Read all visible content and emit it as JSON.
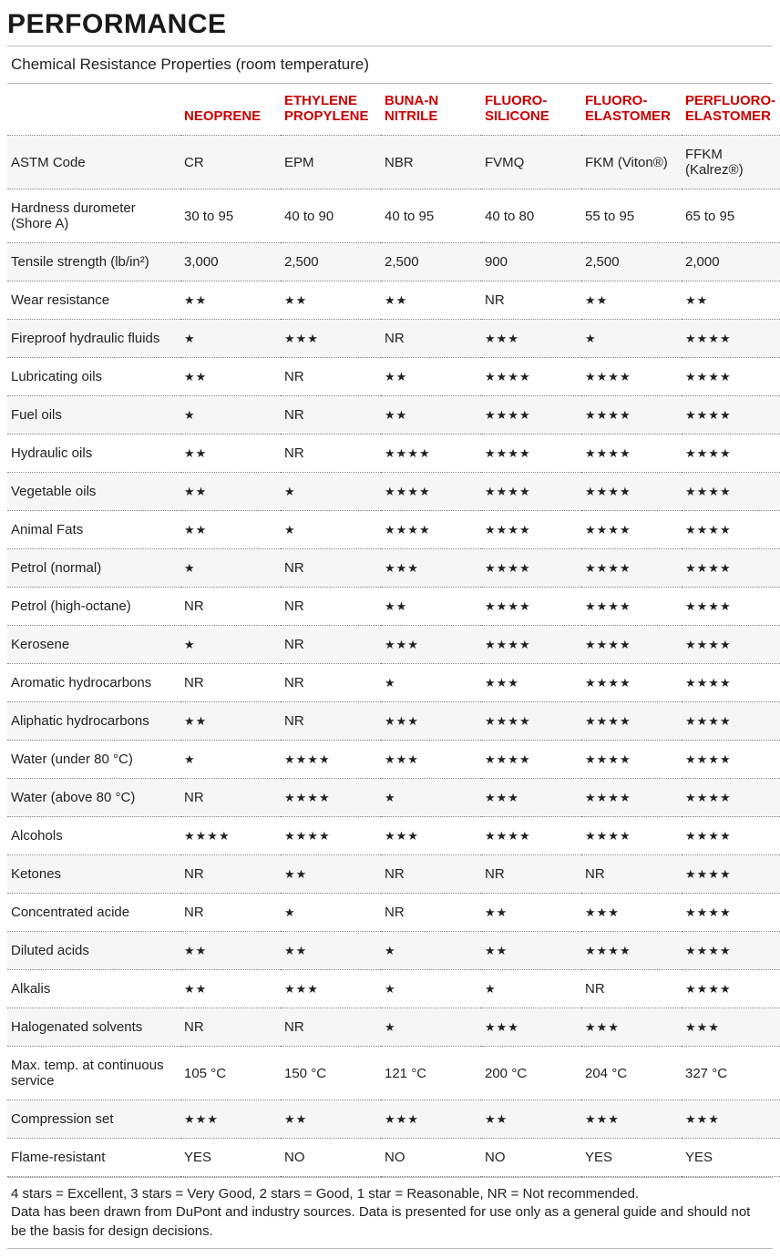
{
  "header": {
    "title": "PERFORMANCE",
    "subtitle": "Chemical Resistance Properties (room temperature)"
  },
  "table": {
    "columns": [
      "NEOPRENE",
      "ETHYLENE PROPYLENE",
      "BUNA-N NITRILE",
      "FLUORO-SILICONE",
      "FLUORO-ELASTOMER",
      "PERFLUORO-ELASTOMER"
    ],
    "rows": [
      {
        "label": "ASTM Code",
        "type": "text",
        "values": [
          "CR",
          "EPM",
          "NBR",
          "FVMQ",
          "FKM (Viton®)",
          "FFKM (Kalrez®)"
        ]
      },
      {
        "label": "Hardness durometer (Shore A)",
        "type": "text",
        "values": [
          "30 to 95",
          "40 to 90",
          "40 to 95",
          "40 to 80",
          "55 to 95",
          "65 to 95"
        ]
      },
      {
        "label": "Tensile strength (lb/in²)",
        "type": "text",
        "values": [
          "3,000",
          "2,500",
          "2,500",
          "900",
          "2,500",
          "2,000"
        ]
      },
      {
        "label": "Wear resistance",
        "type": "rating",
        "values": [
          2,
          2,
          2,
          "NR",
          2,
          2
        ]
      },
      {
        "label": "Fireproof hydraulic fluids",
        "type": "rating",
        "values": [
          1,
          3,
          "NR",
          3,
          1,
          4
        ]
      },
      {
        "label": "Lubricating oils",
        "type": "rating",
        "values": [
          2,
          "NR",
          2,
          4,
          4,
          4
        ]
      },
      {
        "label": "Fuel oils",
        "type": "rating",
        "values": [
          1,
          "NR",
          2,
          4,
          4,
          4
        ]
      },
      {
        "label": "Hydraulic oils",
        "type": "rating",
        "values": [
          2,
          "NR",
          4,
          4,
          4,
          4
        ]
      },
      {
        "label": "Vegetable oils",
        "type": "rating",
        "values": [
          2,
          1,
          4,
          4,
          4,
          4
        ]
      },
      {
        "label": "Animal Fats",
        "type": "rating",
        "values": [
          2,
          1,
          4,
          4,
          4,
          4
        ]
      },
      {
        "label": "Petrol (normal)",
        "type": "rating",
        "values": [
          1,
          "NR",
          3,
          4,
          4,
          4
        ]
      },
      {
        "label": "Petrol (high-octane)",
        "type": "rating",
        "values": [
          "NR",
          "NR",
          2,
          4,
          4,
          4
        ]
      },
      {
        "label": "Kerosene",
        "type": "rating",
        "values": [
          1,
          "NR",
          3,
          4,
          4,
          4
        ]
      },
      {
        "label": "Aromatic hydrocarbons",
        "type": "rating",
        "values": [
          "NR",
          "NR",
          1,
          3,
          4,
          4
        ]
      },
      {
        "label": "Aliphatic hydrocarbons",
        "type": "rating",
        "values": [
          2,
          "NR",
          3,
          4,
          4,
          4
        ]
      },
      {
        "label": "Water (under 80 °C)",
        "type": "rating",
        "values": [
          1,
          4,
          3,
          4,
          4,
          4
        ]
      },
      {
        "label": "Water (above 80 °C)",
        "type": "rating",
        "values": [
          "NR",
          4,
          1,
          3,
          4,
          4
        ]
      },
      {
        "label": "Alcohols",
        "type": "rating",
        "values": [
          4,
          4,
          3,
          4,
          4,
          4
        ]
      },
      {
        "label": "Ketones",
        "type": "rating",
        "values": [
          "NR",
          2,
          "NR",
          "NR",
          "NR",
          4
        ]
      },
      {
        "label": "Concentrated acide",
        "type": "rating",
        "values": [
          "NR",
          1,
          "NR",
          2,
          3,
          4
        ]
      },
      {
        "label": "Diluted acids",
        "type": "rating",
        "values": [
          2,
          2,
          1,
          2,
          4,
          4
        ]
      },
      {
        "label": "Alkalis",
        "type": "rating",
        "values": [
          2,
          3,
          1,
          1,
          "NR",
          4
        ]
      },
      {
        "label": "Halogenated solvents",
        "type": "rating",
        "values": [
          "NR",
          "NR",
          1,
          3,
          3,
          3
        ]
      },
      {
        "label": "Max. temp. at continuous service",
        "type": "text",
        "values": [
          "105 °C",
          "150 °C",
          "121 °C",
          "200 °C",
          "204 °C",
          "327 °C"
        ]
      },
      {
        "label": "Compression set",
        "type": "rating",
        "values": [
          3,
          2,
          3,
          2,
          3,
          3
        ]
      },
      {
        "label": "Flame-resistant",
        "type": "text",
        "values": [
          "YES",
          "NO",
          "NO",
          "NO",
          "YES",
          "YES"
        ]
      }
    ]
  },
  "footnote": "4 stars = Excellent, 3 stars = Very Good, 2 stars = Good, 1 star = Reasonable, NR = Not recommended.\nData has been drawn from DuPont and industry sources. Data is presented for use only as a general guide and should not be the basis for design decisions.",
  "style": {
    "accent_color": "#cc0000",
    "row_alt_bg": "#f6f6f6",
    "border_color": "#bbbbbb",
    "dotted_color": "#888888",
    "text_color": "#222222",
    "title_fontsize": 30,
    "header_fontsize": 15,
    "cell_fontsize": 15,
    "star_char": "★"
  }
}
